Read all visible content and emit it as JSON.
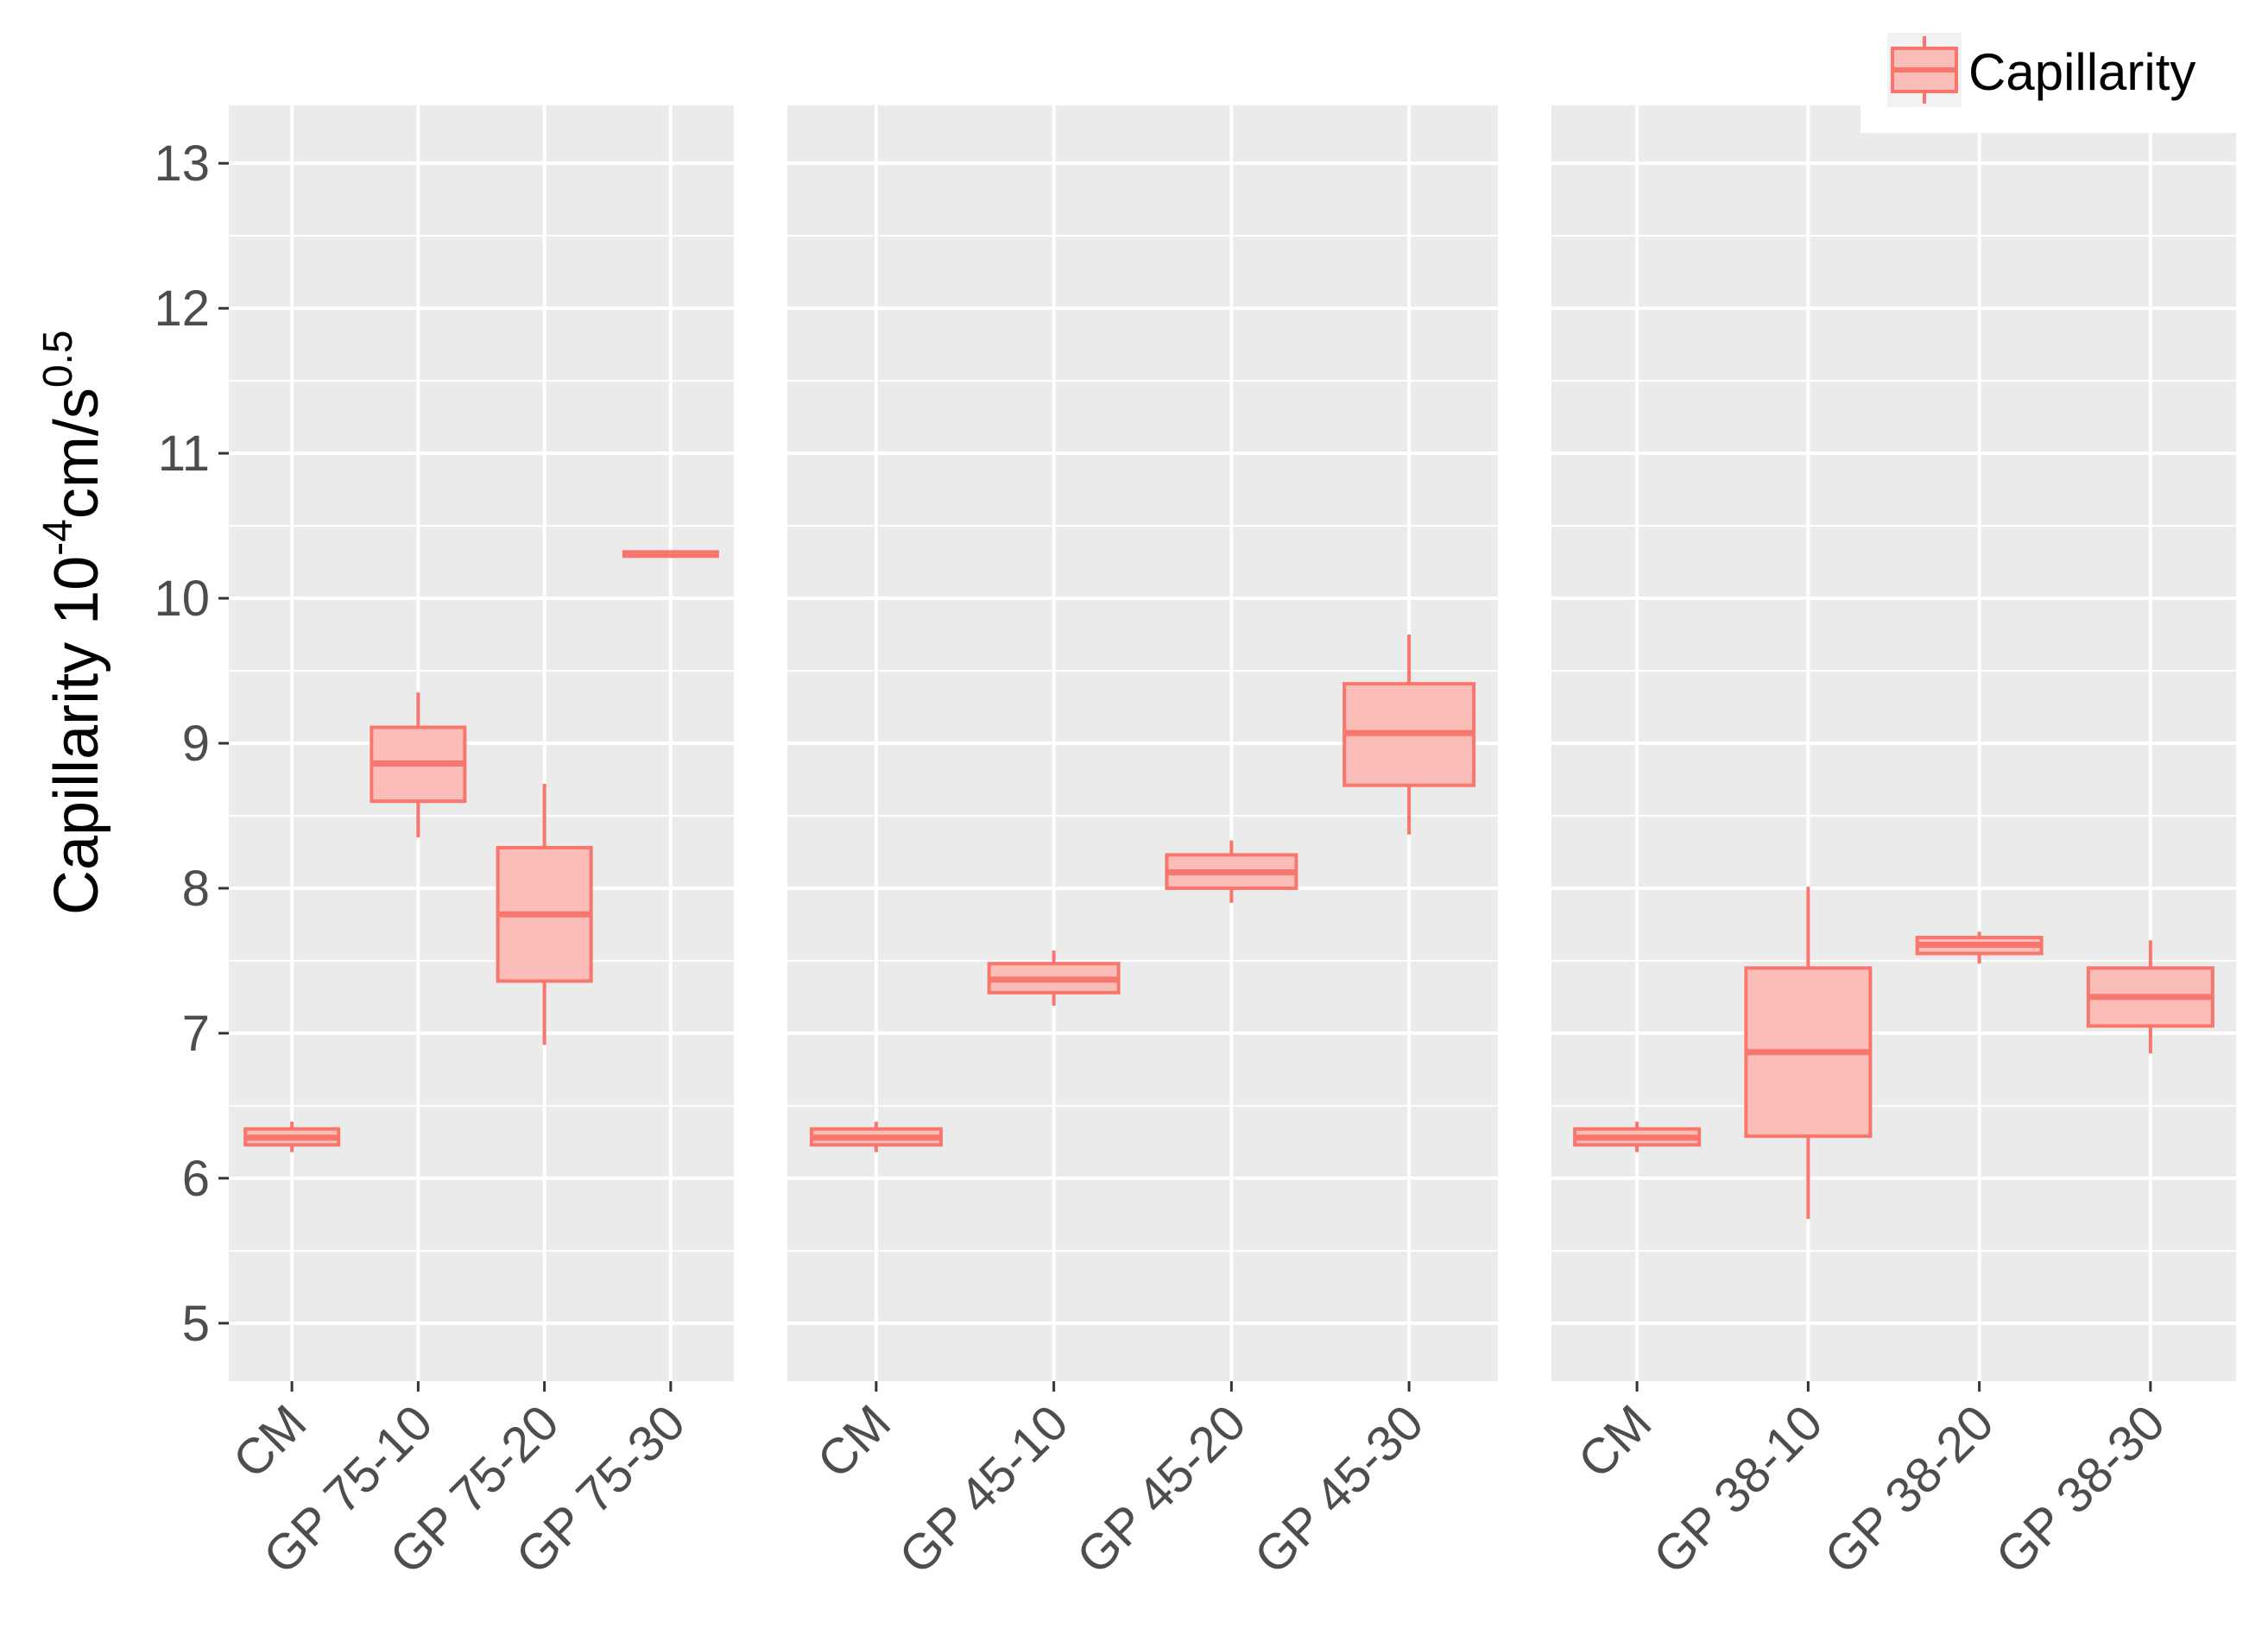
{
  "chart_data": {
    "type": "boxplot",
    "ylabel": {
      "base": "Capillarity 10",
      "exp1": "-4",
      "mid": "cm/s",
      "exp2": "0.5"
    },
    "ylim": [
      4.6,
      13.4
    ],
    "yticks": [
      5,
      6,
      7,
      8,
      9,
      10,
      11,
      12,
      13
    ],
    "grid": true,
    "legend": {
      "position": "top-right",
      "entries": [
        "Capillarity"
      ]
    },
    "colors": {
      "fill": "#f8766d",
      "panel_bg": "#ebebeb",
      "grid": "#ffffff"
    },
    "panels": [
      {
        "categories": [
          "CM",
          "GP 75-10",
          "GP 75-20",
          "GP 75-30"
        ],
        "boxes": [
          {
            "lower": 6.18,
            "q1": 6.23,
            "median": 6.28,
            "q3": 6.34,
            "upper": 6.39
          },
          {
            "lower": 8.35,
            "q1": 8.6,
            "median": 8.86,
            "q3": 9.11,
            "upper": 9.35
          },
          {
            "lower": 6.92,
            "q1": 7.36,
            "median": 7.82,
            "q3": 8.28,
            "upper": 8.72
          },
          {
            "lower": 10.29,
            "q1": 10.29,
            "median": 10.31,
            "q3": 10.32,
            "upper": 10.32
          }
        ]
      },
      {
        "categories": [
          "CM",
          "GP 45-10",
          "GP 45-20",
          "GP 45-30"
        ],
        "boxes": [
          {
            "lower": 6.18,
            "q1": 6.23,
            "median": 6.28,
            "q3": 6.34,
            "upper": 6.39
          },
          {
            "lower": 7.19,
            "q1": 7.28,
            "median": 7.37,
            "q3": 7.48,
            "upper": 7.57
          },
          {
            "lower": 7.9,
            "q1": 8.0,
            "median": 8.11,
            "q3": 8.23,
            "upper": 8.33
          },
          {
            "lower": 8.37,
            "q1": 8.71,
            "median": 9.07,
            "q3": 9.41,
            "upper": 9.75
          }
        ]
      },
      {
        "categories": [
          "CM",
          "GP 38-10",
          "GP 38-20",
          "GP 38-30"
        ],
        "boxes": [
          {
            "lower": 6.18,
            "q1": 6.23,
            "median": 6.28,
            "q3": 6.34,
            "upper": 6.39
          },
          {
            "lower": 5.72,
            "q1": 6.29,
            "median": 6.87,
            "q3": 7.45,
            "upper": 8.01
          },
          {
            "lower": 7.48,
            "q1": 7.55,
            "median": 7.61,
            "q3": 7.66,
            "upper": 7.7
          },
          {
            "lower": 6.86,
            "q1": 7.05,
            "median": 7.25,
            "q3": 7.45,
            "upper": 7.64
          }
        ]
      }
    ]
  }
}
